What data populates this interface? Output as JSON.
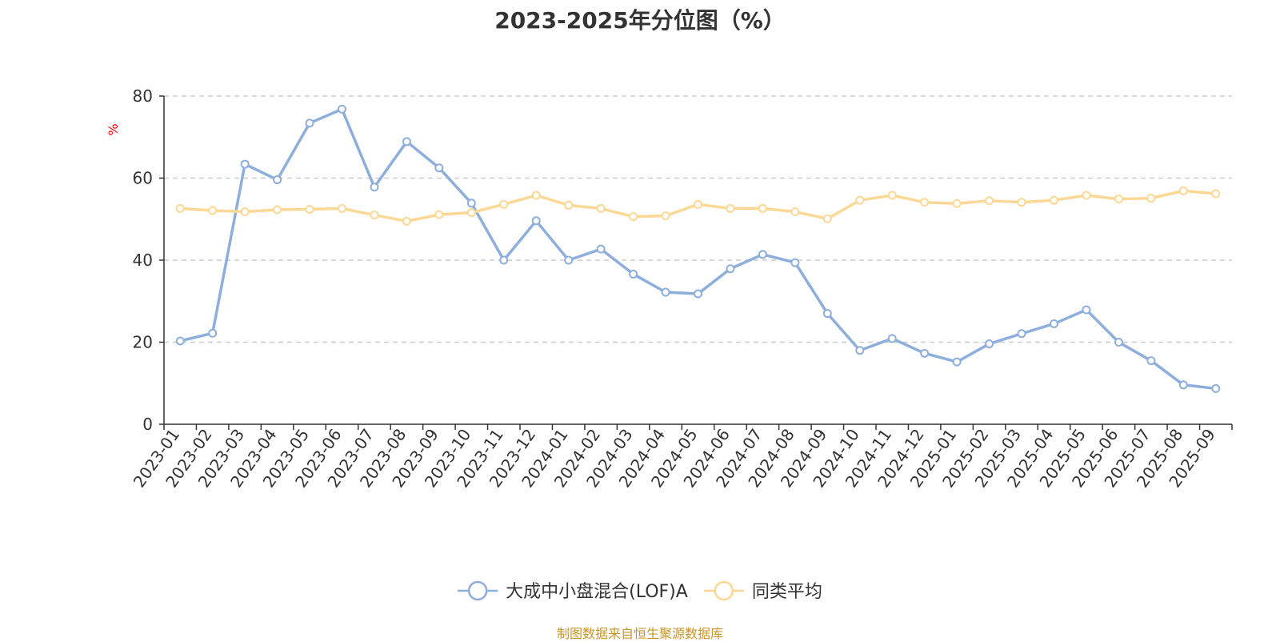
{
  "chart_data": {
    "type": "line",
    "title": "2023-2025年分位图（%）",
    "ylabel": "%",
    "ylim": [
      0,
      80
    ],
    "yticks": [
      0,
      20,
      40,
      60,
      80
    ],
    "grid": true,
    "legend_position": "bottom",
    "categories": [
      "2023-01",
      "2023-02",
      "2023-03",
      "2023-04",
      "2023-05",
      "2023-06",
      "2023-07",
      "2023-08",
      "2023-09",
      "2023-10",
      "2023-11",
      "2023-12",
      "2024-01",
      "2024-02",
      "2024-03",
      "2024-04",
      "2024-05",
      "2024-06",
      "2024-07",
      "2024-08",
      "2024-09",
      "2024-10",
      "2024-11",
      "2024-12",
      "2025-01",
      "2025-02",
      "2025-03",
      "2025-04",
      "2025-05",
      "2025-06",
      "2025-07",
      "2025-08",
      "2025-09"
    ],
    "series": [
      {
        "name": "大成中小盘混合(LOF)A",
        "color": "#8eaedc",
        "values": [
          20.3,
          22.2,
          63.4,
          59.6,
          73.4,
          76.8,
          57.8,
          68.9,
          62.5,
          53.9,
          40.0,
          49.6,
          40.0,
          42.7,
          36.6,
          32.2,
          31.8,
          37.9,
          41.4,
          39.4,
          27.0,
          18.0,
          20.9,
          17.3,
          15.2,
          19.6,
          22.1,
          24.5,
          27.9,
          20.0,
          15.5,
          9.6,
          8.7
        ]
      },
      {
        "name": "同类平均",
        "color": "#fbd896",
        "values": [
          52.6,
          52.1,
          51.8,
          52.3,
          52.4,
          52.6,
          51.0,
          49.5,
          51.1,
          51.6,
          53.6,
          55.8,
          53.4,
          52.6,
          50.6,
          50.8,
          53.6,
          52.6,
          52.6,
          51.8,
          50.1,
          54.6,
          55.8,
          54.1,
          53.8,
          54.5,
          54.1,
          54.6,
          55.8,
          54.9,
          55.1,
          56.9,
          56.2
        ]
      }
    ]
  },
  "source_note": "制图数据来自恒生聚源数据库"
}
